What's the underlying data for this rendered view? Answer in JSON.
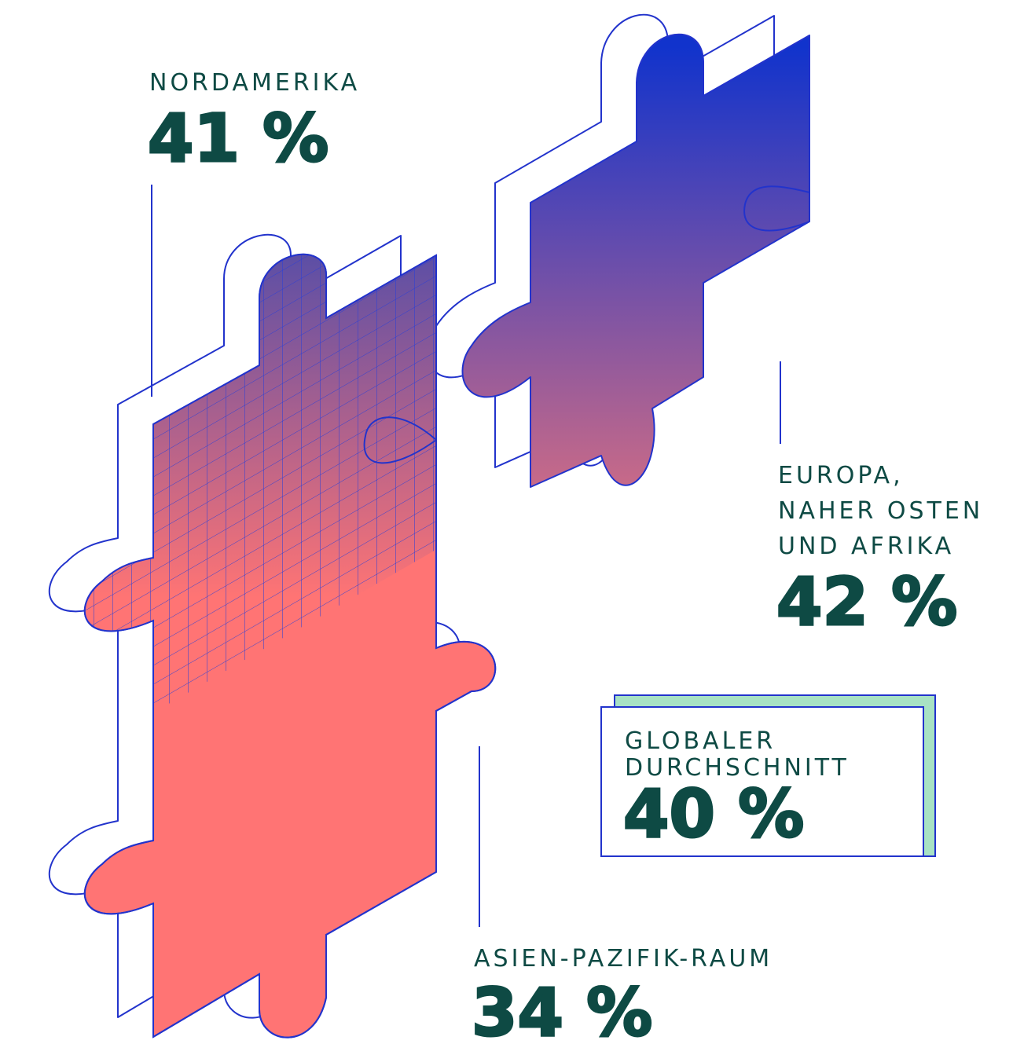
{
  "regions": [
    {
      "label": [
        "NORDAMERIKA"
      ],
      "value": "41 %"
    },
    {
      "label": [
        "EUROPA,",
        "NAHER OSTEN",
        "UND AFRIKA"
      ],
      "value": "42 %"
    },
    {
      "label": [
        "ASIEN-PAZIFIK-RAUM"
      ],
      "value": "34 %"
    }
  ],
  "global": {
    "label": [
      "GLOBALER",
      "DURCHSCHNITT"
    ],
    "value": "40 %"
  }
}
